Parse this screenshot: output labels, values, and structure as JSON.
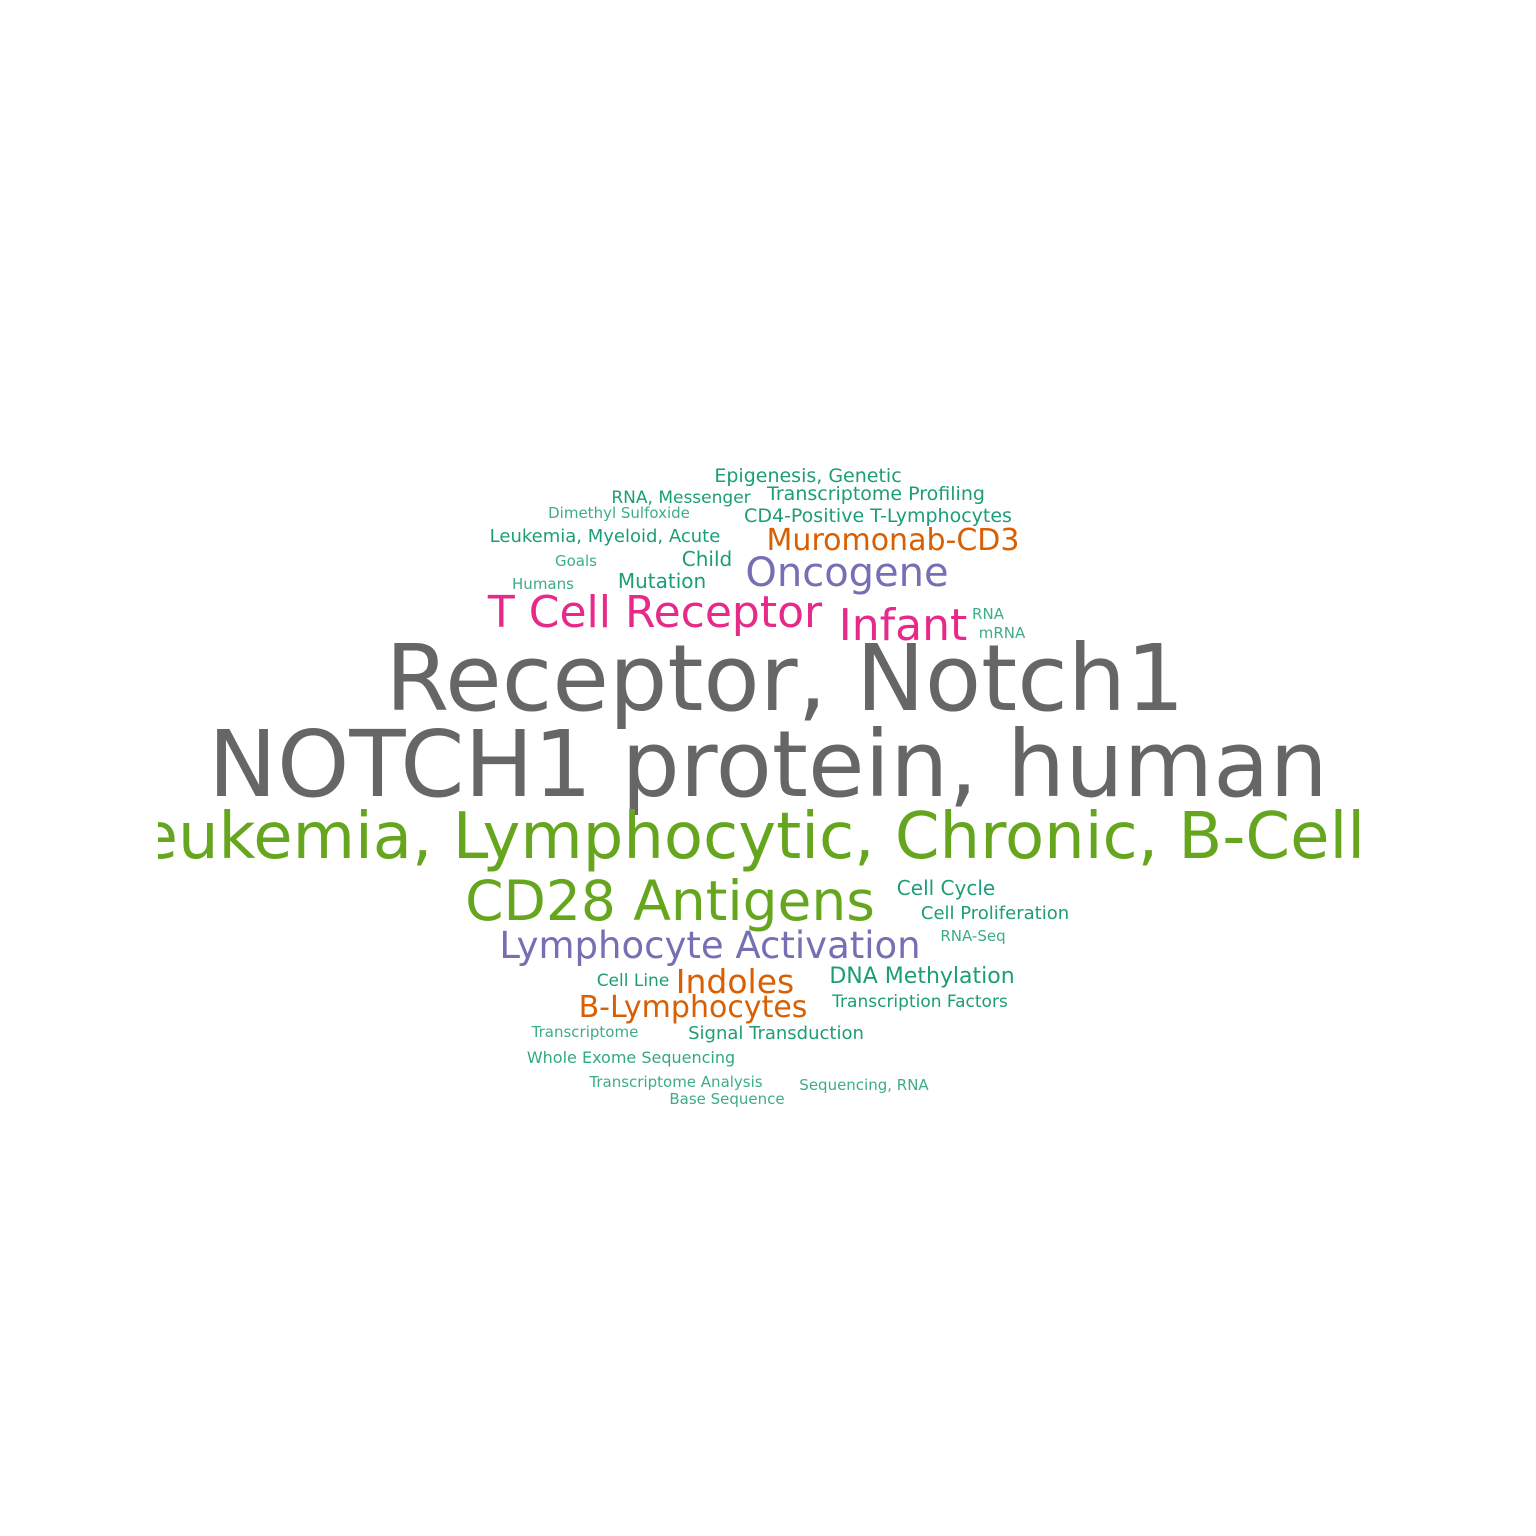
{
  "palette": {
    "gray": "#666666",
    "green": "#66a61e",
    "pink": "#e7298a",
    "purple": "#7570b3",
    "orange": "#d95f02",
    "teal": "#1b9e77"
  },
  "words": [
    {
      "text": "Receptor, Notch1",
      "color": "gray",
      "weight": 100
    },
    {
      "text": "NOTCH1 protein, human",
      "color": "gray",
      "weight": 100
    },
    {
      "text": "Leukemia, Lymphocytic, Chronic, B-Cell",
      "color": "green",
      "weight": 70
    },
    {
      "text": "CD28 Antigens",
      "color": "green",
      "weight": 62
    },
    {
      "text": "T Cell Receptor",
      "color": "pink",
      "weight": 50
    },
    {
      "text": "Infant",
      "color": "pink",
      "weight": 50
    },
    {
      "text": "Oncogene",
      "color": "purple",
      "weight": 44
    },
    {
      "text": "Lymphocyte Activation",
      "color": "purple",
      "weight": 42
    },
    {
      "text": "Muromonab-CD3",
      "color": "orange",
      "weight": 34
    },
    {
      "text": "Indoles",
      "color": "orange",
      "weight": 36
    },
    {
      "text": "B-Lymphocytes",
      "color": "orange",
      "weight": 34
    },
    {
      "text": "Epigenesis, Genetic",
      "color": "teal",
      "weight": 20
    },
    {
      "text": "RNA, Messenger",
      "color": "teal",
      "weight": 18
    },
    {
      "text": "Transcriptome Profiling",
      "color": "teal",
      "weight": 20
    },
    {
      "text": "Dimethyl Sulfoxide",
      "color": "teal",
      "weight": 16
    },
    {
      "text": "CD4-Positive T-Lymphocytes",
      "color": "teal",
      "weight": 21
    },
    {
      "text": "Leukemia, Myeloid, Acute",
      "color": "teal",
      "weight": 19
    },
    {
      "text": "Goals",
      "color": "teal",
      "weight": 15
    },
    {
      "text": "Child",
      "color": "teal",
      "weight": 21
    },
    {
      "text": "Humans",
      "color": "teal",
      "weight": 15
    },
    {
      "text": "Mutation",
      "color": "teal",
      "weight": 21
    },
    {
      "text": "RNA",
      "color": "teal",
      "weight": 15
    },
    {
      "text": "mRNA",
      "color": "teal",
      "weight": 15
    },
    {
      "text": "Cell Cycle",
      "color": "teal",
      "weight": 21
    },
    {
      "text": "Cell Proliferation",
      "color": "teal",
      "weight": 19
    },
    {
      "text": "RNA-Seq",
      "color": "teal",
      "weight": 15
    },
    {
      "text": "DNA Methylation",
      "color": "teal",
      "weight": 22
    },
    {
      "text": "Cell Line",
      "color": "teal",
      "weight": 18
    },
    {
      "text": "Transcription Factors",
      "color": "teal",
      "weight": 17
    },
    {
      "text": "Transcriptome",
      "color": "teal",
      "weight": 15
    },
    {
      "text": "Signal Transduction",
      "color": "teal",
      "weight": 19
    },
    {
      "text": "Whole Exome Sequencing",
      "color": "teal",
      "weight": 16
    },
    {
      "text": "Transcriptome Analysis",
      "color": "teal",
      "weight": 15
    },
    {
      "text": "Sequencing, RNA",
      "color": "teal",
      "weight": 15
    },
    {
      "text": "Base Sequence",
      "color": "teal",
      "weight": 15
    }
  ]
}
